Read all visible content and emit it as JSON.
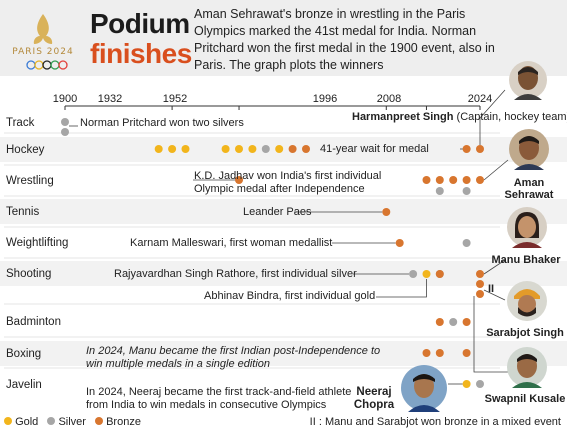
{
  "header": {
    "logo_text": "PARIS 2024",
    "title_line1": "Podium",
    "title_line2": "finishes",
    "intro": "Aman Sehrawat's bronze in wrestling in the Paris Olympics marked the 41st medal for India. Norman Pritchard won the first medal in the 1900 event, also in Paris. The graph plots the winners"
  },
  "colors": {
    "gold": "#f2b51c",
    "silver": "#a6a6a6",
    "bronze": "#d8762f",
    "accent": "#d94f1e"
  },
  "chart_data": {
    "type": "scatter",
    "x_ticks": [
      1900,
      1932,
      1952,
      1996,
      2008,
      2024
    ],
    "xlim": [
      1900,
      2024
    ],
    "categories": [
      "Track",
      "Hockey",
      "Wrestling",
      "Tennis",
      "Weightlifting",
      "Shooting",
      "Badminton",
      "Boxing",
      "Javelin"
    ],
    "series": [
      {
        "name": "Gold",
        "points": [
          {
            "sport": "Hockey",
            "years": [
              1928,
              1932,
              1936,
              1948,
              1952,
              1956,
              1964,
              1980
            ]
          },
          {
            "sport": "Shooting",
            "years": [
              2008
            ]
          },
          {
            "sport": "Javelin",
            "years": [
              2020
            ]
          }
        ]
      },
      {
        "name": "Silver",
        "points": [
          {
            "sport": "Track",
            "years": [
              1900,
              1900
            ]
          },
          {
            "sport": "Hockey",
            "years": [
              1960
            ]
          },
          {
            "sport": "Wrestling",
            "years": [
              2012,
              2020
            ]
          },
          {
            "sport": "Weightlifting",
            "years": [
              2020
            ]
          },
          {
            "sport": "Shooting",
            "years": [
              2004,
              2012
            ]
          },
          {
            "sport": "Badminton",
            "years": [
              2016
            ]
          },
          {
            "sport": "Javelin",
            "years": [
              2024
            ]
          }
        ]
      },
      {
        "name": "Bronze",
        "points": [
          {
            "sport": "Hockey",
            "years": [
              1968,
              1972,
              2020,
              2024
            ]
          },
          {
            "sport": "Wrestling",
            "years": [
              1952,
              2008,
              2012,
              2016,
              2020,
              2024
            ]
          },
          {
            "sport": "Tennis",
            "years": [
              1996
            ]
          },
          {
            "sport": "Weightlifting",
            "years": [
              2000
            ]
          },
          {
            "sport": "Shooting",
            "years": [
              2012,
              2024,
              2024,
              2024
            ]
          },
          {
            "sport": "Badminton",
            "years": [
              2012,
              2020
            ]
          },
          {
            "sport": "Boxing",
            "years": [
              2008,
              2012,
              2020
            ]
          }
        ]
      }
    ],
    "annotations": [
      {
        "id": "track",
        "text": "Norman Pritchard won two silvers"
      },
      {
        "id": "harman_name",
        "text": "Harmanpreet Singh"
      },
      {
        "id": "harman_role",
        "text": "(Captain, hockey team)"
      },
      {
        "id": "hockey_wait",
        "text": "41-year wait for medal"
      },
      {
        "id": "jadhav",
        "text": "K.D. Jadhav won India's first individual Olympic medal after Independence"
      },
      {
        "id": "paes",
        "text": "Leander Paes"
      },
      {
        "id": "malleswari",
        "text": "Karnam Malleswari, first woman medallist"
      },
      {
        "id": "rathore",
        "text": "Rajyavardhan Singh Rathore, first individual silver"
      },
      {
        "id": "bindra",
        "text": "Abhinav Bindra, first individual gold"
      },
      {
        "id": "manu",
        "text": "In 2024, Manu became the first Indian post-Independence to win multiple medals in a single edition"
      },
      {
        "id": "neeraj",
        "text": "In 2024, Neeraj became the first track-and-field athlete from India to win medals in consecutive Olympics"
      }
    ],
    "athletes": [
      {
        "id": "aman",
        "name": "Aman Sehrawat"
      },
      {
        "id": "manu",
        "name": "Manu Bhaker"
      },
      {
        "id": "sarabjot",
        "name": "Sarabjot Singh"
      },
      {
        "id": "swapnil",
        "name": "Swapnil Kusale"
      },
      {
        "id": "neeraj",
        "name": "Neeraj Chopra"
      }
    ],
    "legend": [
      "Gold",
      "Silver",
      "Bronze"
    ],
    "legend_position": "bottom-left",
    "footnote": "II : Manu and Sarabjot won bronze in a mixed event"
  }
}
